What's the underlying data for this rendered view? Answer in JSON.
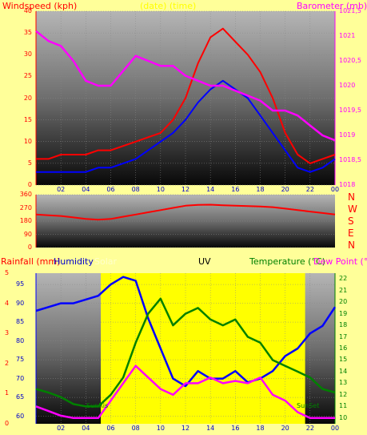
{
  "header": {
    "windspeed_label": "Windspeed (kph)",
    "barometer_label": "Barometer (mb)",
    "timestamp": "(date) (time)"
  },
  "compass": [
    "N",
    "W",
    "S",
    "E",
    "N"
  ],
  "lower_header": {
    "rainfall_label": "Rainfall (mm)",
    "humidity_label": "Humidity",
    "solar_label": "Solar",
    "uv_label": "UV",
    "temperature_label": "Temperature (°C)",
    "dewpoint_label": "Dew Point (°C)"
  },
  "annotations": {
    "sunrise": "SunRis",
    "sunset": "SunSet"
  },
  "colors": {
    "background": "#ffff99",
    "wind_gust": "#ff0000",
    "wind_avg": "#0000ff",
    "barometer": "#ff00ff",
    "wind_dir": "#ff0000",
    "humidity": "#0000ff",
    "temperature": "#008000",
    "dewpoint": "#ff00ff",
    "uv": "#ffff00",
    "rainfall": "#ff0000"
  },
  "chart_data": [
    {
      "type": "line",
      "x_ticks": [
        "02",
        "04",
        "06",
        "08",
        "10",
        "12",
        "14",
        "16",
        "18",
        "20",
        "22",
        "00"
      ],
      "ylim_left": [
        0,
        40
      ],
      "left_ticks": [
        "0",
        "5",
        "10",
        "15",
        "20",
        "25",
        "30",
        "35",
        "40"
      ],
      "ylim_right": [
        1018,
        1021.5
      ],
      "right_ticks": [
        "1018",
        "1018,5",
        "1019",
        "1019,5",
        "1020",
        "1020,5",
        "1021",
        "1021,5"
      ],
      "x": [
        0,
        1,
        2,
        3,
        4,
        5,
        6,
        7,
        8,
        9,
        10,
        11,
        12,
        13,
        14,
        15,
        16,
        17,
        18,
        19,
        20,
        21,
        22,
        23,
        24
      ],
      "series": [
        {
          "values": [
            6,
            6,
            7,
            7,
            7,
            8,
            8,
            9,
            10,
            11,
            12,
            15,
            20,
            28,
            34,
            36,
            33,
            30,
            26,
            20,
            12,
            7,
            5,
            6,
            7
          ]
        },
        {
          "values": [
            3,
            3,
            3,
            3,
            3,
            4,
            4,
            5,
            6,
            8,
            10,
            12,
            15,
            19,
            22,
            24,
            22,
            20,
            16,
            12,
            8,
            4,
            3,
            4,
            6
          ]
        },
        {
          "values": [
            1021.1,
            1020.9,
            1020.8,
            1020.5,
            1020.1,
            1020.0,
            1020.0,
            1020.3,
            1020.6,
            1020.5,
            1020.4,
            1020.4,
            1020.2,
            1020.1,
            1020.0,
            1020.0,
            1019.9,
            1019.8,
            1019.7,
            1019.5,
            1019.5,
            1019.4,
            1019.2,
            1019.0,
            1018.9
          ]
        }
      ]
    },
    {
      "type": "line",
      "x_ticks": [
        "02",
        "04",
        "06",
        "08",
        "10",
        "12",
        "14",
        "16",
        "18",
        "20",
        "22",
        "00"
      ],
      "ylim": [
        0,
        360
      ],
      "y_ticks": [
        "0",
        "90",
        "180",
        "270",
        "360"
      ],
      "x": [
        0,
        1,
        2,
        3,
        4,
        5,
        6,
        7,
        8,
        9,
        10,
        11,
        12,
        13,
        14,
        15,
        16,
        17,
        18,
        19,
        20,
        21,
        22,
        23,
        24
      ],
      "series": [
        {
          "values": [
            225,
            220,
            215,
            205,
            195,
            190,
            195,
            210,
            225,
            240,
            255,
            270,
            285,
            290,
            292,
            288,
            285,
            282,
            280,
            275,
            265,
            255,
            245,
            235,
            225
          ]
        }
      ]
    },
    {
      "type": "line",
      "x_ticks": [
        "02",
        "04",
        "06",
        "08",
        "10",
        "12",
        "14",
        "16",
        "18",
        "20",
        "22",
        "00"
      ],
      "ylim_humidity": [
        58,
        98
      ],
      "humidity_ticks": [
        "60",
        "65",
        "70",
        "75",
        "80",
        "85",
        "90",
        "95"
      ],
      "ylim_temp": [
        9.5,
        22.5
      ],
      "temp_ticks": [
        "10",
        "11",
        "12",
        "13",
        "14",
        "15",
        "16",
        "17",
        "18",
        "19",
        "20",
        "21",
        "22"
      ],
      "ylim_rain": [
        0,
        5
      ],
      "rain_ticks": [
        "0",
        "1",
        "2",
        "3",
        "4",
        "5"
      ],
      "x": [
        0,
        1,
        2,
        3,
        4,
        5,
        6,
        7,
        8,
        9,
        10,
        11,
        12,
        13,
        14,
        15,
        16,
        17,
        18,
        19,
        20,
        21,
        22,
        23,
        24
      ],
      "series": [
        {
          "values": [
            88,
            89,
            90,
            90,
            91,
            92,
            95,
            97,
            96,
            86,
            78,
            70,
            68,
            72,
            70,
            70,
            72,
            69,
            70,
            72,
            76,
            78,
            82,
            84,
            89
          ]
        },
        {
          "values": [
            12.5,
            12.2,
            11.8,
            11.2,
            11.0,
            11.0,
            12.0,
            13.5,
            16.5,
            19.0,
            20.3,
            18.0,
            19.0,
            19.5,
            18.5,
            18.0,
            18.5,
            17.0,
            16.5,
            15.0,
            14.5,
            14.0,
            13.5,
            12.5,
            12.2
          ]
        },
        {
          "values": [
            11.0,
            10.6,
            10.2,
            10.0,
            10.0,
            10.0,
            11.5,
            13.0,
            14.5,
            13.5,
            12.5,
            12.0,
            13.0,
            13.0,
            13.5,
            13.0,
            13.2,
            13.0,
            13.5,
            12.0,
            11.5,
            10.5,
            10.0,
            10.0,
            10.0
          ]
        }
      ]
    }
  ]
}
